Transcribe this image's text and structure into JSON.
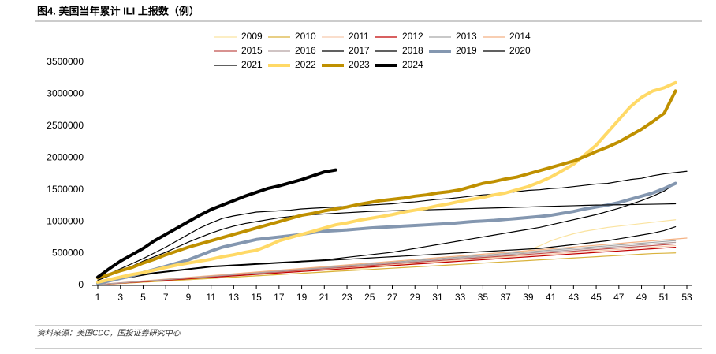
{
  "chart_data": {
    "type": "line",
    "title": "图4. 美国当年累计 ILI 上报数（例）",
    "source": "资料来源：美国CDC，国投证券研究中心",
    "x": [
      1,
      2,
      3,
      4,
      5,
      6,
      7,
      8,
      9,
      10,
      11,
      12,
      13,
      14,
      15,
      16,
      17,
      18,
      19,
      20,
      21,
      22,
      23,
      24,
      25,
      26,
      27,
      28,
      29,
      30,
      31,
      32,
      33,
      34,
      35,
      36,
      37,
      38,
      39,
      40,
      41,
      42,
      43,
      44,
      45,
      46,
      47,
      48,
      49,
      50,
      51,
      52,
      53
    ],
    "xlim": [
      1,
      53
    ],
    "xticks": [
      1,
      3,
      5,
      7,
      9,
      11,
      13,
      15,
      17,
      19,
      21,
      23,
      25,
      27,
      29,
      31,
      33,
      35,
      37,
      39,
      41,
      43,
      45,
      47,
      49,
      51,
      53
    ],
    "ylim": [
      0,
      3500000
    ],
    "yticks": [
      0,
      500000,
      1000000,
      1500000,
      2000000,
      2500000,
      3000000,
      3500000
    ],
    "legend": "top",
    "series": [
      {
        "name": "2009",
        "color": "#FAE3A0",
        "linewidth": 1.2,
        "values": [
          10000,
          20000,
          30000,
          40000,
          50000,
          60000,
          70000,
          80000,
          90000,
          100000,
          110000,
          120000,
          130000,
          140000,
          150000,
          160000,
          170000,
          180000,
          190000,
          200000,
          215000,
          230000,
          245000,
          260000,
          275000,
          290000,
          305000,
          320000,
          335000,
          350000,
          365000,
          380000,
          395000,
          410000,
          425000,
          440000,
          455000,
          470000,
          550000,
          620000,
          700000,
          760000,
          810000,
          850000,
          880000,
          910000,
          930000,
          950000,
          970000,
          990000,
          1010000,
          1030000,
          null
        ]
      },
      {
        "name": "2010",
        "color": "#D9B23C",
        "linewidth": 1.2,
        "values": [
          10000,
          20000,
          30000,
          40000,
          50000,
          60000,
          70000,
          80000,
          90000,
          100000,
          110000,
          120000,
          130000,
          140000,
          150000,
          160000,
          170000,
          180000,
          190000,
          200000,
          210000,
          220000,
          230000,
          240000,
          250000,
          260000,
          270000,
          280000,
          290000,
          300000,
          310000,
          320000,
          330000,
          340000,
          350000,
          360000,
          370000,
          380000,
          390000,
          400000,
          410000,
          420000,
          430000,
          440000,
          450000,
          460000,
          470000,
          480000,
          490000,
          500000,
          505000,
          510000,
          null
        ]
      },
      {
        "name": "2011",
        "color": "#F8CBAD",
        "linewidth": 1.2,
        "values": [
          12000,
          24000,
          36000,
          48000,
          60000,
          72000,
          84000,
          96000,
          108000,
          120000,
          132000,
          144000,
          156000,
          168000,
          180000,
          192000,
          204000,
          216000,
          228000,
          240000,
          252000,
          264000,
          276000,
          288000,
          300000,
          312000,
          324000,
          336000,
          348000,
          360000,
          372000,
          384000,
          396000,
          408000,
          420000,
          432000,
          444000,
          456000,
          468000,
          480000,
          492000,
          504000,
          516000,
          528000,
          540000,
          552000,
          564000,
          576000,
          588000,
          600000,
          612000,
          624000,
          null
        ]
      },
      {
        "name": "2012",
        "color": "#C00000",
        "linewidth": 1.2,
        "values": [
          11500,
          23000,
          34500,
          46000,
          57500,
          69000,
          80500,
          92000,
          103500,
          115000,
          126500,
          138000,
          149500,
          161000,
          172500,
          184000,
          195500,
          207000,
          218500,
          230000,
          241500,
          253000,
          264500,
          276000,
          287500,
          299000,
          310500,
          322000,
          333500,
          345000,
          356500,
          368000,
          379500,
          391000,
          402500,
          414000,
          425500,
          437000,
          448500,
          460000,
          471500,
          483000,
          494500,
          506000,
          517500,
          529000,
          540500,
          552000,
          563500,
          575000,
          586500,
          598000,
          null
        ]
      },
      {
        "name": "2013",
        "color": "#A6A6A6",
        "linewidth": 1.2,
        "values": [
          13500,
          27000,
          40500,
          54000,
          67500,
          81000,
          94500,
          108000,
          121500,
          135000,
          148500,
          162000,
          175500,
          189000,
          202500,
          216000,
          229500,
          243000,
          256500,
          270000,
          283500,
          297000,
          310500,
          324000,
          337500,
          351000,
          364500,
          378000,
          391500,
          405000,
          418500,
          432000,
          445500,
          459000,
          472500,
          486000,
          499500,
          513000,
          526500,
          540000,
          553500,
          567000,
          580500,
          594000,
          607500,
          621000,
          634500,
          648000,
          661500,
          675000,
          688500,
          702000,
          null
        ]
      },
      {
        "name": "2014",
        "color": "#F4B183",
        "linewidth": 1.2,
        "values": [
          14000,
          28000,
          42000,
          56000,
          70000,
          84000,
          98000,
          112000,
          126000,
          140000,
          154000,
          168000,
          182000,
          196000,
          210000,
          224000,
          238000,
          252000,
          266000,
          280000,
          294000,
          308000,
          322000,
          336000,
          350000,
          364000,
          378000,
          392000,
          406000,
          420000,
          434000,
          448000,
          462000,
          476000,
          490000,
          504000,
          518000,
          532000,
          546000,
          560000,
          574000,
          588000,
          602000,
          616000,
          630000,
          644000,
          658000,
          672000,
          686000,
          700000,
          714000,
          728000,
          742000
        ]
      },
      {
        "name": "2015",
        "color": "#C0504D",
        "linewidth": 1.2,
        "values": [
          12500,
          25000,
          37500,
          50000,
          62500,
          75000,
          87500,
          100000,
          112500,
          125000,
          137500,
          150000,
          162500,
          175000,
          187500,
          200000,
          212500,
          225000,
          237500,
          250000,
          262500,
          275000,
          287500,
          300000,
          312500,
          325000,
          337500,
          350000,
          362500,
          375000,
          387500,
          400000,
          412500,
          425000,
          437500,
          450000,
          462500,
          475000,
          487500,
          500000,
          512500,
          525000,
          537500,
          550000,
          562500,
          575000,
          587500,
          600000,
          612500,
          625000,
          637500,
          650000,
          null
        ]
      },
      {
        "name": "2016",
        "color": "#B4A0A0",
        "linewidth": 1.2,
        "values": [
          13000,
          26000,
          39000,
          52000,
          65000,
          78000,
          91000,
          104000,
          117000,
          130000,
          143000,
          156000,
          169000,
          182000,
          195000,
          208000,
          221000,
          234000,
          247000,
          260000,
          273000,
          286000,
          299000,
          312000,
          325000,
          338000,
          351000,
          364000,
          377000,
          390000,
          403000,
          416000,
          429000,
          442000,
          455000,
          468000,
          481000,
          494000,
          507000,
          520000,
          533000,
          546000,
          559000,
          572000,
          585000,
          598000,
          611000,
          624000,
          637000,
          650000,
          663000,
          676000,
          null
        ]
      },
      {
        "name": "2017",
        "color": "#000000",
        "linewidth": 1.2,
        "values": [
          40000,
          70000,
          100000,
          130000,
          160000,
          190000,
          210000,
          230000,
          250000,
          270000,
          290000,
          300000,
          310000,
          320000,
          330000,
          340000,
          350000,
          360000,
          370000,
          380000,
          390000,
          400000,
          410000,
          420000,
          430000,
          440000,
          450000,
          460000,
          470000,
          480000,
          490000,
          500000,
          510000,
          520000,
          530000,
          540000,
          550000,
          560000,
          570000,
          580000,
          600000,
          620000,
          640000,
          660000,
          680000,
          700000,
          730000,
          760000,
          790000,
          820000,
          860000,
          920000,
          null
        ]
      },
      {
        "name": "2018",
        "color": "#000000",
        "linewidth": 1.2,
        "values": [
          50000,
          80000,
          110000,
          140000,
          170000,
          200000,
          220000,
          240000,
          260000,
          280000,
          300000,
          310000,
          320000,
          330000,
          340000,
          350000,
          360000,
          370000,
          380000,
          390000,
          400000,
          420000,
          440000,
          460000,
          480000,
          500000,
          520000,
          550000,
          580000,
          610000,
          640000,
          670000,
          700000,
          730000,
          760000,
          790000,
          820000,
          850000,
          880000,
          910000,
          950000,
          990000,
          1030000,
          1070000,
          1110000,
          1160000,
          1210000,
          1270000,
          1330000,
          1400000,
          1480000,
          1600000,
          null
        ]
      },
      {
        "name": "2019",
        "color": "#8497B0",
        "linewidth": 4,
        "values": [
          30000,
          70000,
          110000,
          150000,
          200000,
          250000,
          300000,
          350000,
          400000,
          470000,
          540000,
          600000,
          640000,
          680000,
          720000,
          740000,
          760000,
          780000,
          800000,
          830000,
          850000,
          860000,
          870000,
          885000,
          900000,
          910000,
          920000,
          930000,
          940000,
          950000,
          960000,
          970000,
          985000,
          1000000,
          1010000,
          1020000,
          1035000,
          1050000,
          1065000,
          1080000,
          1100000,
          1130000,
          1160000,
          1200000,
          1230000,
          1260000,
          1300000,
          1350000,
          1400000,
          1450000,
          1520000,
          1600000,
          null
        ]
      },
      {
        "name": "2020",
        "color": "#000000",
        "linewidth": 1.2,
        "values": [
          80000,
          150000,
          220000,
          300000,
          380000,
          450000,
          520000,
          600000,
          680000,
          750000,
          820000,
          880000,
          930000,
          970000,
          1000000,
          1030000,
          1060000,
          1080000,
          1100000,
          1110000,
          1120000,
          1130000,
          1140000,
          1150000,
          1160000,
          1165000,
          1170000,
          1175000,
          1180000,
          1185000,
          1190000,
          1195000,
          1200000,
          1205000,
          1210000,
          1215000,
          1220000,
          1225000,
          1230000,
          1235000,
          1240000,
          1245000,
          1250000,
          1255000,
          1260000,
          1262000,
          1265000,
          1268000,
          1270000,
          1273000,
          1276000,
          1280000,
          null
        ]
      },
      {
        "name": "2021",
        "color": "#000000",
        "linewidth": 1.2,
        "values": [
          100000,
          180000,
          260000,
          340000,
          420000,
          510000,
          600000,
          700000,
          800000,
          900000,
          980000,
          1050000,
          1090000,
          1120000,
          1150000,
          1160000,
          1170000,
          1180000,
          1200000,
          1210000,
          1220000,
          1230000,
          1240000,
          1250000,
          1260000,
          1270000,
          1280000,
          1300000,
          1310000,
          1330000,
          1350000,
          1360000,
          1380000,
          1400000,
          1420000,
          1430000,
          1450000,
          1470000,
          1490000,
          1500000,
          1520000,
          1530000,
          1550000,
          1570000,
          1590000,
          1600000,
          1630000,
          1660000,
          1680000,
          1720000,
          1750000,
          1770000,
          1790000
        ]
      },
      {
        "name": "2022",
        "color": "#FFD966",
        "linewidth": 4,
        "values": [
          50000,
          90000,
          130000,
          170000,
          200000,
          240000,
          280000,
          320000,
          350000,
          380000,
          410000,
          450000,
          480000,
          520000,
          550000,
          620000,
          700000,
          750000,
          800000,
          850000,
          900000,
          950000,
          980000,
          1020000,
          1050000,
          1080000,
          1110000,
          1150000,
          1180000,
          1210000,
          1250000,
          1280000,
          1320000,
          1350000,
          1380000,
          1420000,
          1450000,
          1500000,
          1550000,
          1620000,
          1700000,
          1800000,
          1900000,
          2050000,
          2200000,
          2400000,
          2600000,
          2800000,
          2950000,
          3050000,
          3100000,
          3180000,
          null
        ]
      },
      {
        "name": "2023",
        "color": "#BF9000",
        "linewidth": 4,
        "values": [
          120000,
          170000,
          230000,
          280000,
          350000,
          410000,
          480000,
          540000,
          600000,
          650000,
          700000,
          750000,
          800000,
          850000,
          900000,
          950000,
          1000000,
          1050000,
          1100000,
          1130000,
          1170000,
          1200000,
          1230000,
          1270000,
          1300000,
          1330000,
          1350000,
          1370000,
          1400000,
          1420000,
          1450000,
          1470000,
          1500000,
          1550000,
          1600000,
          1630000,
          1670000,
          1700000,
          1750000,
          1800000,
          1850000,
          1900000,
          1950000,
          2020000,
          2100000,
          2170000,
          2250000,
          2350000,
          2450000,
          2570000,
          2700000,
          3050000,
          null
        ]
      },
      {
        "name": "2024",
        "color": "#000000",
        "linewidth": 4,
        "values": [
          130000,
          260000,
          380000,
          480000,
          580000,
          700000,
          800000,
          900000,
          1000000,
          1100000,
          1190000,
          1260000,
          1330000,
          1400000,
          1460000,
          1520000,
          1560000,
          1610000,
          1660000,
          1720000,
          1780000,
          1810000,
          null,
          null,
          null,
          null,
          null,
          null,
          null,
          null,
          null,
          null,
          null,
          null,
          null,
          null,
          null,
          null,
          null,
          null,
          null,
          null,
          null,
          null,
          null,
          null,
          null,
          null,
          null,
          null,
          null,
          null,
          null
        ]
      }
    ]
  }
}
